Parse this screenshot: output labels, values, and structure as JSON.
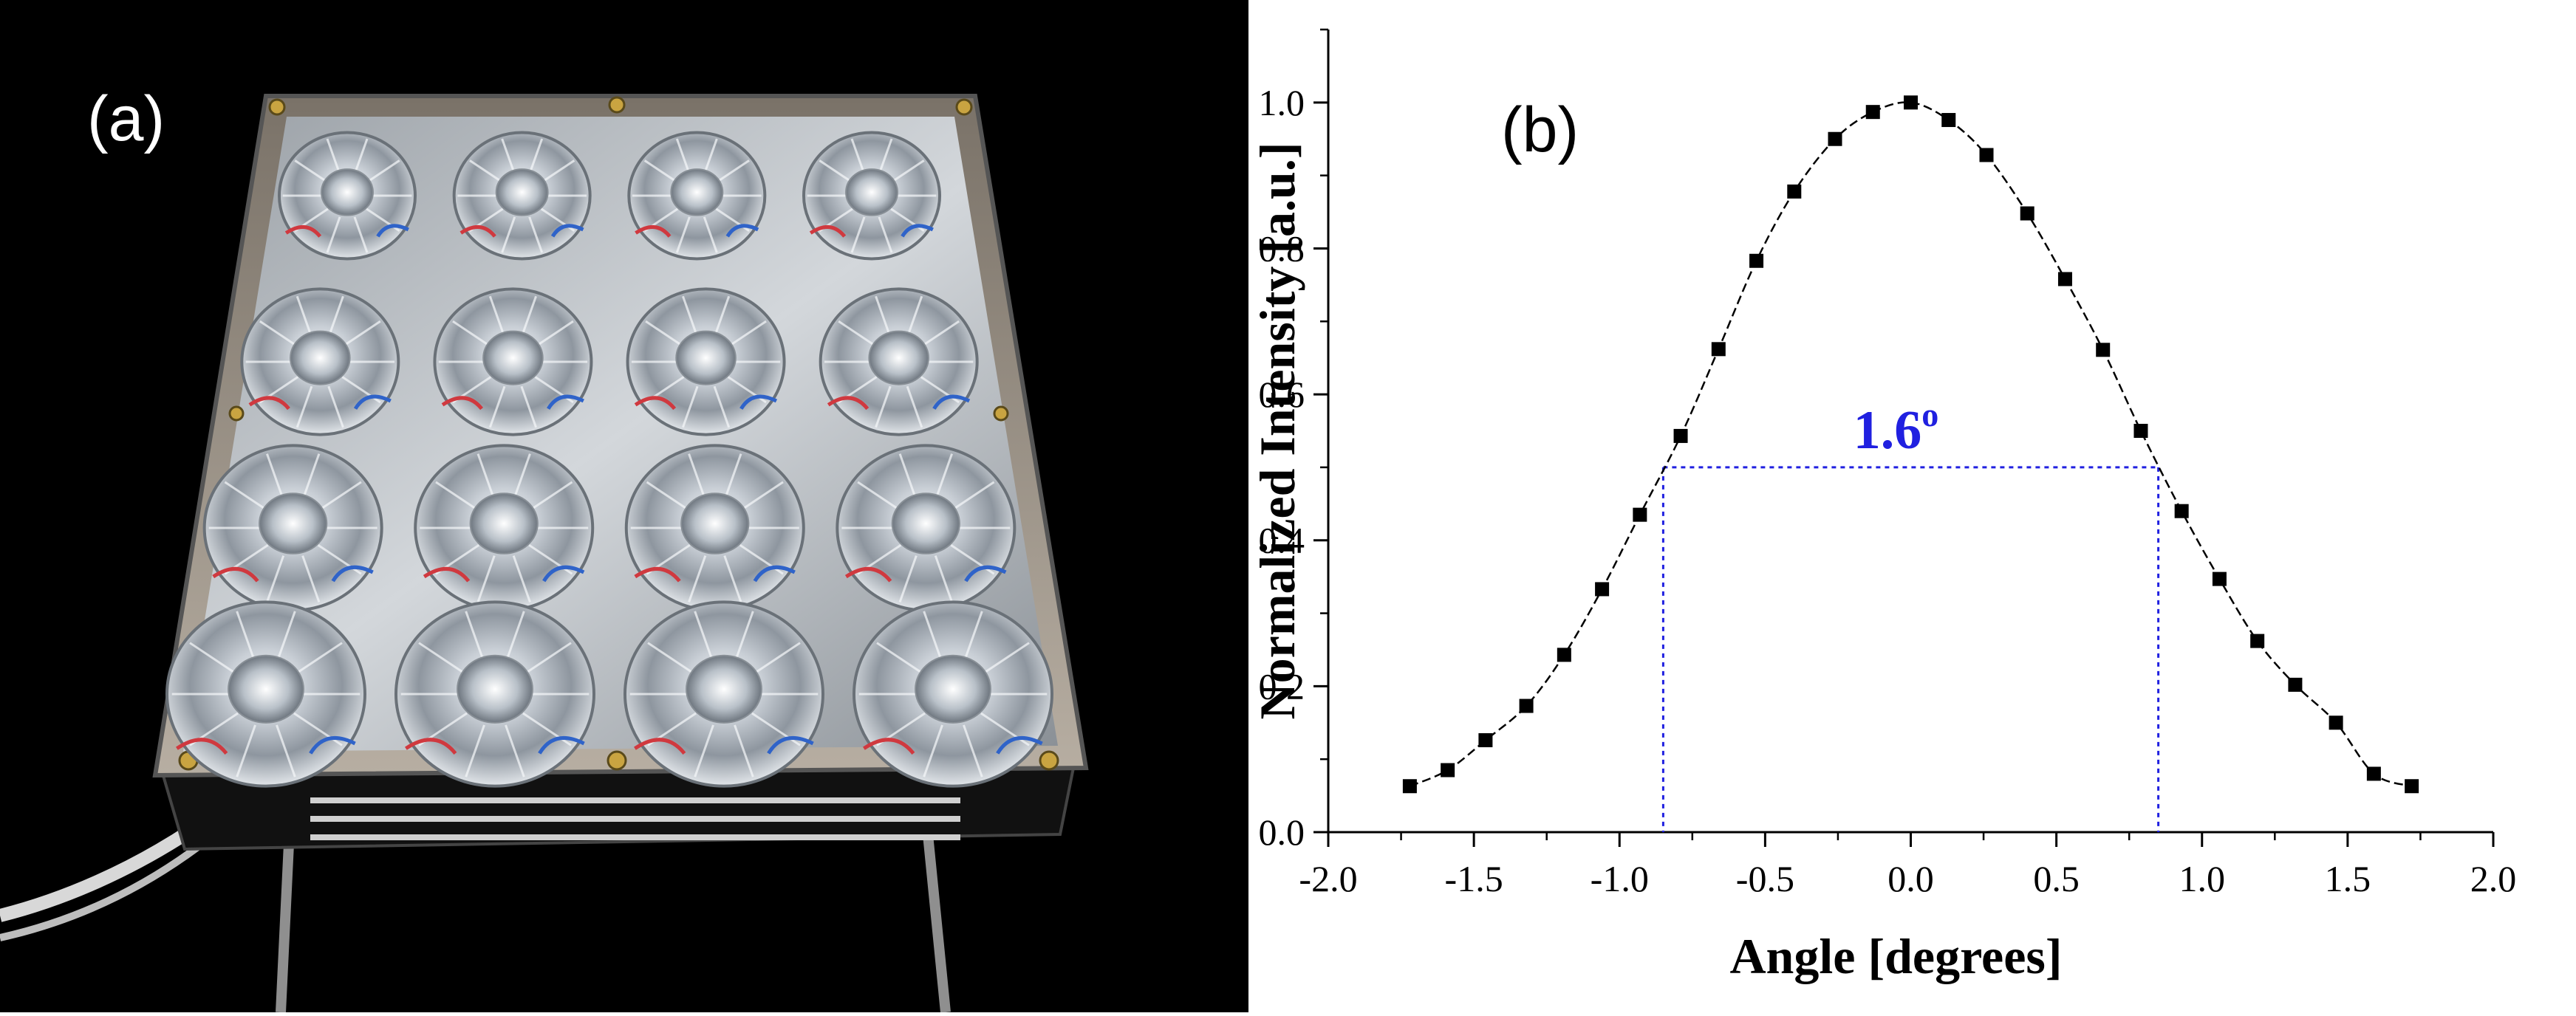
{
  "panels": {
    "a": {
      "label": "(a)"
    },
    "b": {
      "label": "(b)"
    }
  },
  "chart_data": {
    "type": "scatter",
    "title": "",
    "xlabel": "Angle [degrees]",
    "ylabel": "Normalized Intensity [a.u.]",
    "xlim": [
      -2.0,
      2.0
    ],
    "ylim": [
      0.0,
      1.1
    ],
    "x_ticks": [
      -2.0,
      -1.5,
      -1.0,
      -0.5,
      0.0,
      0.5,
      1.0,
      1.5,
      2.0
    ],
    "y_ticks": [
      0.0,
      0.2,
      0.4,
      0.6,
      0.8,
      1.0
    ],
    "x_tick_labels": [
      "-2.0",
      "-1.5",
      "-1.0",
      "-0.5",
      "0.0",
      "0.5",
      "1.0",
      "1.5",
      "2.0"
    ],
    "y_tick_labels": [
      "0.0",
      "0.2",
      "0.4",
      "0.6",
      "0.8",
      "1.0"
    ],
    "grid": false,
    "series": [
      {
        "marker": "square",
        "color": "#000000",
        "connect": "dashed-line",
        "x": [
          -1.72,
          -1.59,
          -1.46,
          -1.32,
          -1.19,
          -1.06,
          -0.93,
          -0.79,
          -0.66,
          -0.53,
          -0.4,
          -0.26,
          -0.13,
          0.0,
          0.13,
          0.26,
          0.4,
          0.53,
          0.66,
          0.79,
          0.93,
          1.06,
          1.19,
          1.32,
          1.46,
          1.59,
          1.72
        ],
        "y": [
          0.063,
          0.085,
          0.126,
          0.173,
          0.243,
          0.333,
          0.435,
          0.543,
          0.662,
          0.783,
          0.878,
          0.95,
          0.987,
          1.0,
          0.976,
          0.928,
          0.848,
          0.758,
          0.661,
          0.55,
          0.44,
          0.347,
          0.262,
          0.202,
          0.15,
          0.08,
          0.063
        ]
      }
    ],
    "annotations": [
      {
        "type": "fwhm",
        "text": "1.6",
        "superscript": "o",
        "color": "#2020e0",
        "x_left": -0.85,
        "x_right": 0.85,
        "y": 0.5
      }
    ]
  }
}
